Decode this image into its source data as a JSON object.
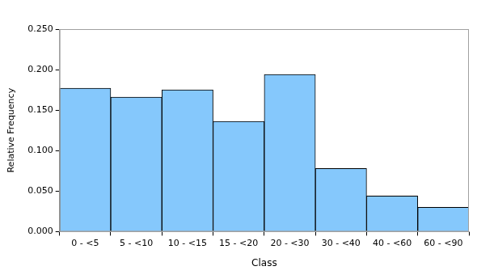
{
  "chart_data": {
    "type": "bar",
    "x_label": "Class",
    "y_label": "Relative Frequency",
    "categories": [
      "0 - <5",
      "5 - <10",
      "10 - <15",
      "15 - <20",
      "20 - <30",
      "30 - <40",
      "40 - <60",
      "60 - <90"
    ],
    "values": [
      0.177,
      0.166,
      0.175,
      0.136,
      0.194,
      0.078,
      0.044,
      0.03
    ],
    "color": "#85c8fc",
    "ylim": [
      0,
      0.25
    ],
    "yticks": [
      {
        "value": 0,
        "label": "0.000"
      },
      {
        "value": 0.05,
        "label": "0.050"
      },
      {
        "value": 0.1,
        "label": "0.100"
      },
      {
        "value": 0.15,
        "label": "0.150"
      },
      {
        "value": 0.2,
        "label": "0.200"
      },
      {
        "value": 0.25,
        "label": "0.250"
      }
    ],
    "grid": false
  }
}
